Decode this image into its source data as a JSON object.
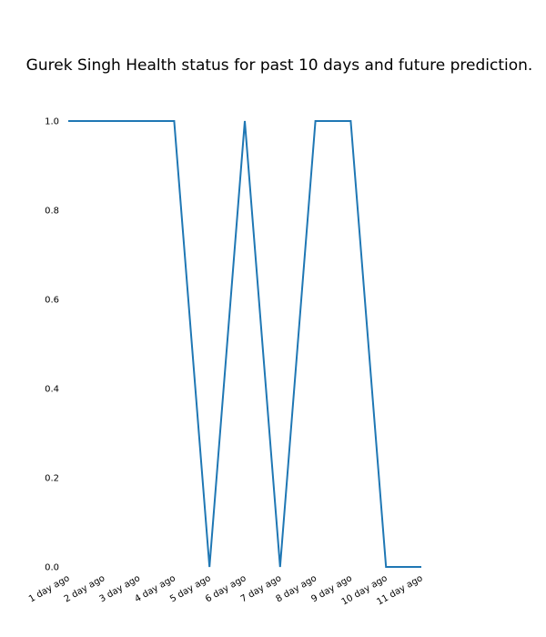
{
  "chart_data": {
    "type": "line",
    "title": "Gurek Singh Health status for past 10 days and future prediction.",
    "xlabel": "",
    "ylabel": "",
    "categories": [
      "1 day ago",
      "2 day ago",
      "3 day ago",
      "4 day ago",
      "5 day ago",
      "6 day ago",
      "7 day ago",
      "8 day ago",
      "9 day ago",
      "10 day ago",
      "11 day ago"
    ],
    "series": [
      {
        "values": [
          1.0,
          1.0,
          1.0,
          1.0,
          0.0,
          1.0,
          0.0,
          1.0,
          1.0,
          0.0,
          0.0
        ]
      }
    ],
    "ylim": [
      0,
      1
    ],
    "yticks": [
      "0.0",
      "0.2",
      "0.4",
      "0.6",
      "0.8",
      "1.0"
    ],
    "grid": false,
    "line_color": "#1f77b4"
  }
}
